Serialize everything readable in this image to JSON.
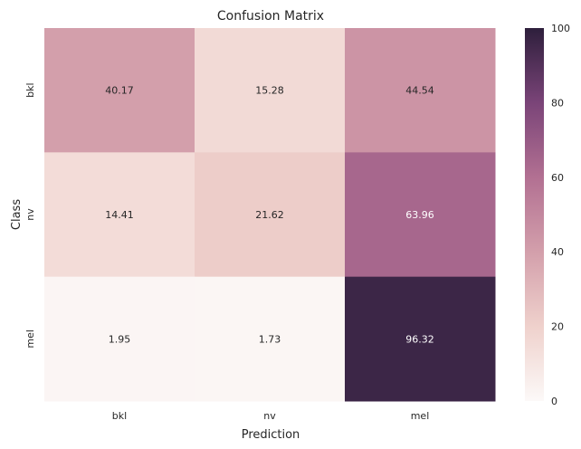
{
  "chart_data": {
    "type": "heatmap",
    "title": "Confusion Matrix",
    "xlabel": "Prediction",
    "ylabel": "Class",
    "x_categories": [
      "bkl",
      "nv",
      "mel"
    ],
    "y_categories": [
      "bkl",
      "nv",
      "mel"
    ],
    "values": [
      [
        40.17,
        15.28,
        44.54
      ],
      [
        14.41,
        21.62,
        63.96
      ],
      [
        1.95,
        1.73,
        96.32
      ]
    ],
    "value_labels": [
      [
        "40.17",
        "15.28",
        "44.54"
      ],
      [
        "14.41",
        "21.62",
        "63.96"
      ],
      [
        "1.95",
        "1.73",
        "96.32"
      ]
    ],
    "colorbar": {
      "range": [
        0,
        100
      ],
      "ticks": [
        "0",
        "20",
        "40",
        "60",
        "80",
        "100"
      ],
      "colors": [
        "#fcf9f8",
        "#efd1cc",
        "#d39fab",
        "#b27092",
        "#7a4478",
        "#2e1f3c"
      ]
    }
  }
}
